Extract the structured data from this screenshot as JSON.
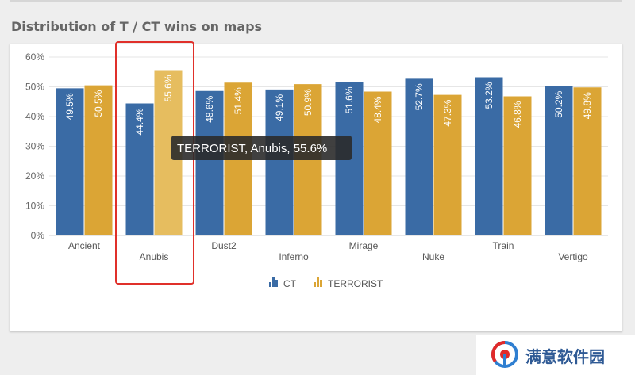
{
  "page": {
    "title": "Distribution of T / CT wins on maps"
  },
  "chart_data": {
    "type": "bar",
    "categories": [
      "Ancient",
      "Anubis",
      "Dust2",
      "Inferno",
      "Mirage",
      "Nuke",
      "Train",
      "Vertigo"
    ],
    "series": [
      {
        "name": "CT",
        "color": "#3a6ba5",
        "values": [
          49.5,
          44.4,
          48.6,
          49.1,
          51.6,
          52.7,
          53.2,
          50.2
        ]
      },
      {
        "name": "TERRORIST",
        "color": "#dba535",
        "values": [
          50.5,
          55.6,
          51.4,
          50.9,
          48.4,
          47.3,
          46.8,
          49.8
        ]
      }
    ],
    "y_ticks": [
      0,
      10,
      20,
      30,
      40,
      50,
      60
    ],
    "ylim": [
      0,
      60
    ],
    "y_unit": "%",
    "grid": true,
    "legend": "bottom-center",
    "data_labels": "inside-top, rotated vertical",
    "x_labels_staggered": true,
    "tooltip": {
      "text": "TERRORIST, Anubis, 55.6%",
      "series": "TERRORIST",
      "category": "Anubis",
      "value": 55.6
    },
    "highlight": {
      "category": "Anubis",
      "color": "#e0302a",
      "hover_color": "#e6bd5f"
    }
  },
  "watermark": {
    "text": "满意软件园",
    "logo_icon": "watermark-logo-icon",
    "logo_colors": [
      "#2f7fd1",
      "#e02a2a"
    ]
  }
}
